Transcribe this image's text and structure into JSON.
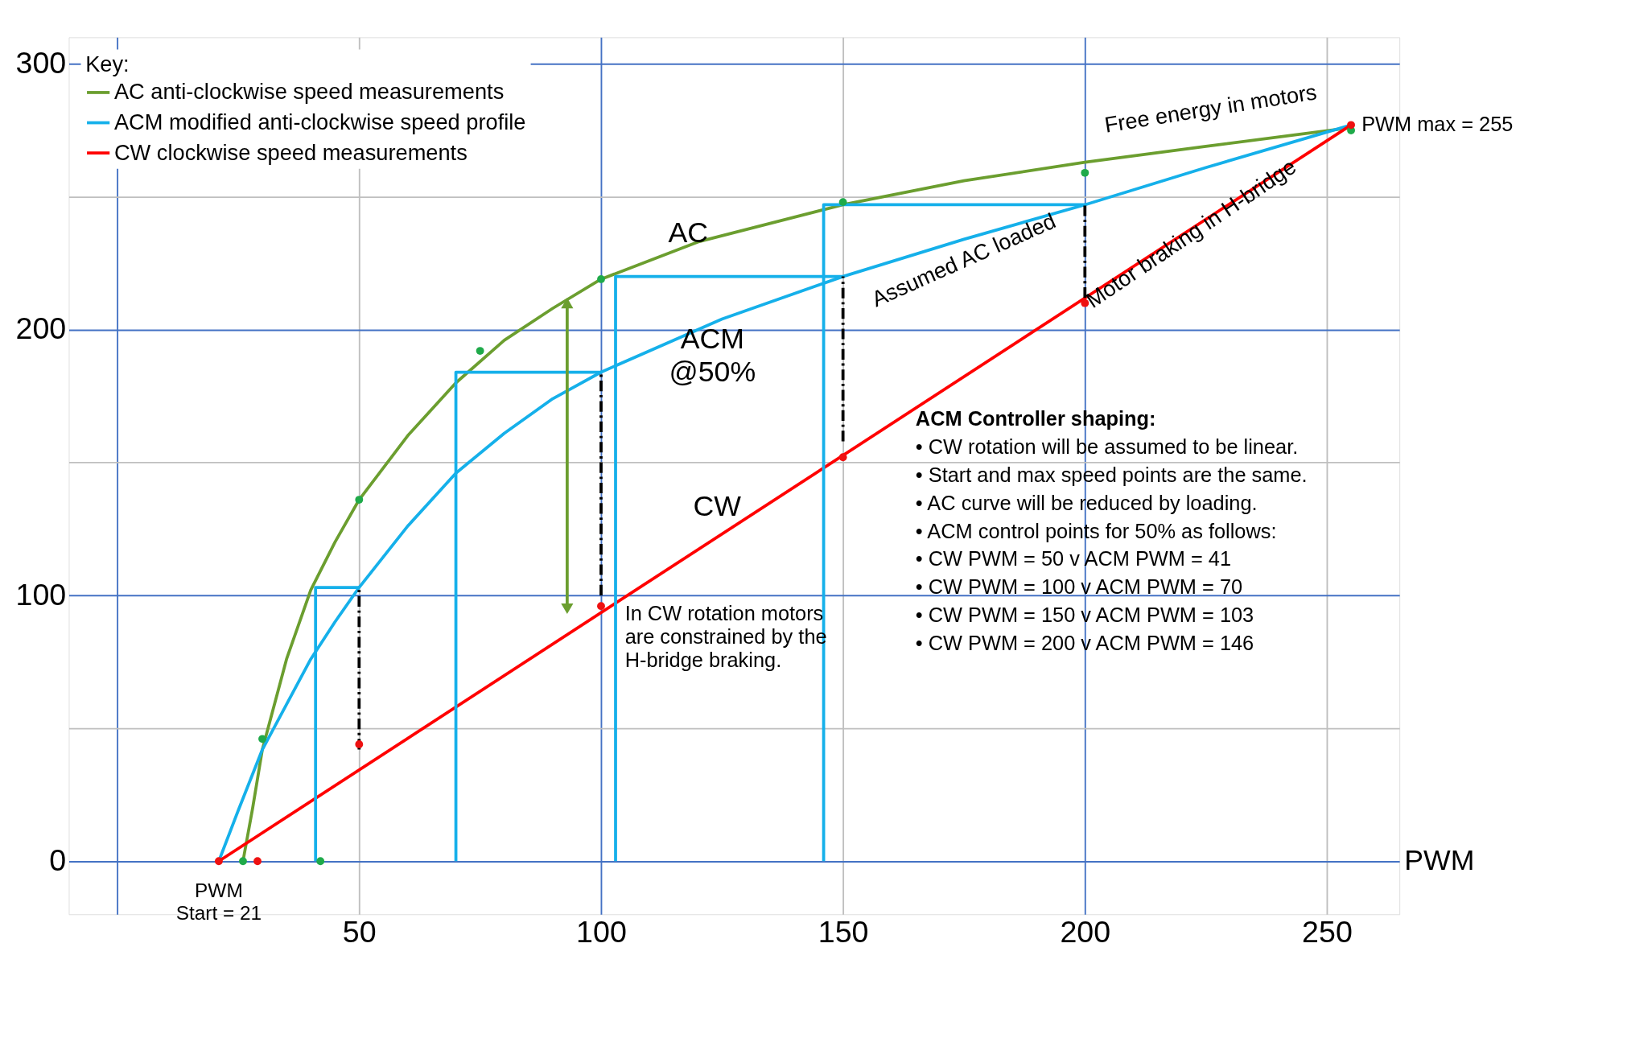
{
  "chart_data": {
    "type": "line",
    "xlabel": "PWM",
    "legend_title": "Key:",
    "legend": "top left",
    "grid": true,
    "xlim": [
      -10,
      265
    ],
    "ylim": [
      -20,
      310
    ],
    "xticks": [
      {
        "value": 0,
        "label": null
      },
      50,
      100,
      150,
      200,
      250
    ],
    "yticks": [
      0,
      {
        "value": 50,
        "label": null
      },
      100,
      {
        "value": 150,
        "label": null
      },
      200,
      {
        "value": 250,
        "label": null
      },
      300
    ],
    "series": [
      {
        "name": "AC anti-clockwise speed measurements",
        "color": "#6b9e2f",
        "x": [
          26,
          28,
          30,
          35,
          40,
          45,
          50,
          60,
          70,
          80,
          90,
          100,
          120,
          150,
          175,
          200,
          225,
          255
        ],
        "values": [
          0,
          20,
          42,
          76,
          102,
          120,
          136,
          160,
          180,
          196,
          208,
          219,
          233,
          247,
          256,
          263,
          269,
          276
        ]
      },
      {
        "name": "ACM modified anti-clockwise speed profile",
        "color": "#15b0ea",
        "x": [
          21,
          25,
          30,
          35,
          40,
          45,
          50,
          60,
          70,
          80,
          90,
          100,
          125,
          150,
          175,
          200,
          225,
          255
        ],
        "values": [
          0,
          19,
          42,
          59,
          76,
          90,
          103,
          126,
          146,
          161,
          174,
          184,
          204,
          220,
          234,
          247,
          261,
          277
        ]
      },
      {
        "name": "CW clockwise speed measurements",
        "color": "#ff0000",
        "x": [
          21,
          255
        ],
        "values": [
          0,
          277
        ]
      },
      {
        "type": "scatter",
        "marker": "circle",
        "color": "#1faa4a",
        "x": [
          26,
          30,
          42,
          50,
          75,
          100,
          150,
          200,
          255
        ],
        "values": [
          0,
          46,
          0,
          136,
          192,
          219,
          248,
          259,
          275
        ]
      },
      {
        "type": "scatter",
        "marker": "circle",
        "color": "#ee1111",
        "x": [
          21,
          29,
          50,
          100,
          150,
          200,
          255
        ],
        "values": [
          0,
          0,
          44,
          96,
          152,
          210,
          277
        ]
      },
      {
        "color": "#15b0ea",
        "x": [
          41,
          41,
          50
        ],
        "values": [
          0,
          103,
          103
        ]
      },
      {
        "color": "#15b0ea",
        "x": [
          70,
          70,
          100
        ],
        "values": [
          0,
          184,
          184
        ]
      },
      {
        "color": "#15b0ea",
        "x": [
          103,
          103,
          150
        ],
        "values": [
          0,
          220,
          220
        ]
      },
      {
        "color": "#15b0ea",
        "x": [
          146,
          146,
          200
        ],
        "values": [
          0,
          247,
          247
        ]
      },
      {
        "color": "#000000",
        "line_style": "dashed",
        "x": [
          50,
          50
        ],
        "values": [
          42,
          103
        ]
      },
      {
        "color": "#000000",
        "line_style": "dashed",
        "x": [
          100,
          100
        ],
        "values": [
          100,
          184
        ]
      },
      {
        "color": "#000000",
        "line_style": "dashed",
        "x": [
          150,
          150
        ],
        "values": [
          158,
          220
        ]
      },
      {
        "color": "#000000",
        "line_style": "dashed",
        "x": [
          200,
          200
        ],
        "values": [
          212,
          247
        ]
      },
      {
        "color": "#6b9e2f",
        "marker": "triangle",
        "x": [
          93,
          93
        ],
        "values": [
          95,
          210
        ]
      }
    ],
    "annotations": [
      "AC",
      "ACM\n@50%",
      "CW",
      "Free energy in motors",
      "Assumed AC loaded",
      {
        "text": "Motor braking in H-bridge",
        "x": 222,
        "y": 236
      },
      {
        "text": "PWM max = 255",
        "x": 255,
        "y": 277
      },
      {
        "text": "PWM\nStart = 21",
        "x": 21,
        "y": 0
      },
      {
        "text": "In CW rotation motors\nare constrained by the\nH-bridge braking.",
        "x": 104,
        "y": 93
      },
      "ACM Controller shaping:",
      "• CW rotation will be assumed to be linear.",
      "• Start and max speed points are the same.",
      "• AC curve will be reduced by loading.",
      "• ACM control points for 50%  as follows:",
      "• CW PWM = 50        v      ACM PWM = 41",
      "• CW PWM = 100      v      ACM PWM = 70",
      "• CW PWM = 150      v      ACM PWM = 103",
      "• CW PWM = 200      v      ACM PWM = 146"
    ]
  }
}
